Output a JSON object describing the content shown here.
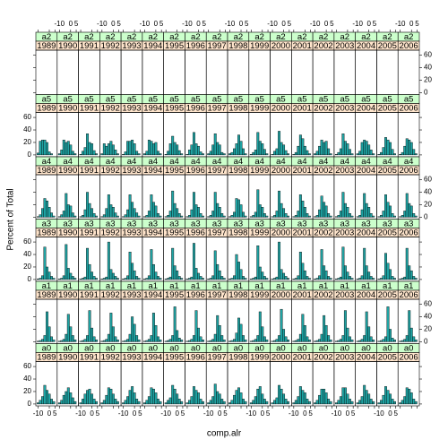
{
  "chart_data": {
    "type": "histogram",
    "xlabel": "comp.alr",
    "ylabel": "Percent of Total",
    "bins": [
      -11,
      -9,
      -7,
      -5,
      -3,
      -1,
      1,
      3,
      5
    ],
    "xlim": [
      -12,
      7
    ],
    "xticks": [
      -10,
      0,
      5
    ],
    "ylim": [
      -3,
      68
    ],
    "yticks": [
      0,
      20,
      40,
      60
    ],
    "color": "#1fa3a3",
    "strip_colors": [
      "#ccffcc",
      "#ffe5cc"
    ],
    "years": [
      "1989",
      "1990",
      "1991",
      "1992",
      "1993",
      "1994",
      "1995",
      "1996",
      "1997",
      "1998",
      "1999",
      "2000",
      "2001",
      "2002",
      "2003",
      "2004",
      "2005",
      "2006"
    ],
    "rows": [
      {
        "group": "a2",
        "panels": [
          [
            0,
            0,
            0,
            0,
            0,
            0,
            0,
            0
          ],
          [
            0,
            0,
            0,
            0,
            0,
            0,
            0,
            0
          ],
          [
            0,
            0,
            0,
            0,
            0,
            0,
            0,
            0
          ],
          [
            0,
            0,
            0,
            0,
            0,
            0,
            0,
            0
          ],
          [
            0,
            0,
            0,
            0,
            0,
            0,
            0,
            0
          ],
          [
            0,
            0,
            0,
            0,
            0,
            0,
            0,
            0
          ],
          [
            0,
            0,
            0,
            0,
            0,
            0,
            0,
            0
          ],
          [
            0,
            0,
            0,
            0,
            0,
            0,
            0,
            0
          ],
          [
            0,
            0,
            0,
            0,
            0,
            0,
            0,
            0
          ],
          [
            0,
            0,
            0,
            0,
            0,
            0,
            0,
            0
          ],
          [
            0,
            0,
            0,
            0,
            0,
            0,
            0,
            0
          ],
          [
            0,
            0,
            0,
            0,
            0,
            0,
            0,
            0
          ],
          [
            0,
            0,
            0,
            0,
            0,
            0,
            0,
            0
          ],
          [
            0,
            0,
            0,
            0,
            0,
            0,
            0,
            0
          ],
          [
            0,
            0,
            0,
            0,
            0,
            0,
            0,
            0
          ],
          [
            0,
            0,
            0,
            0,
            0,
            0,
            0,
            0
          ],
          [
            0,
            0,
            0,
            0,
            0,
            0,
            0,
            0
          ],
          [
            0,
            0,
            0,
            0,
            0,
            0,
            0,
            0
          ]
        ]
      },
      {
        "group": "a5",
        "panels": [
          [
            3,
            22,
            24,
            24,
            20,
            5,
            2,
            0
          ],
          [
            2,
            8,
            24,
            20,
            22,
            16,
            6,
            2
          ],
          [
            1,
            6,
            12,
            34,
            20,
            18,
            7,
            2
          ],
          [
            2,
            18,
            14,
            18,
            22,
            16,
            8,
            2
          ],
          [
            1,
            5,
            22,
            22,
            24,
            18,
            6,
            2
          ],
          [
            2,
            6,
            24,
            22,
            18,
            20,
            6,
            2
          ],
          [
            1,
            6,
            18,
            30,
            20,
            16,
            7,
            2
          ],
          [
            1,
            8,
            16,
            36,
            18,
            14,
            5,
            2
          ],
          [
            2,
            6,
            16,
            34,
            20,
            16,
            4,
            2
          ],
          [
            2,
            4,
            10,
            18,
            32,
            22,
            10,
            2
          ],
          [
            1,
            4,
            8,
            36,
            22,
            18,
            9,
            2
          ],
          [
            1,
            6,
            10,
            38,
            20,
            16,
            7,
            2
          ],
          [
            1,
            4,
            14,
            32,
            26,
            14,
            7,
            2
          ],
          [
            2,
            6,
            14,
            24,
            20,
            22,
            10,
            2
          ],
          [
            1,
            4,
            10,
            34,
            22,
            18,
            9,
            2
          ],
          [
            2,
            6,
            20,
            24,
            22,
            16,
            8,
            2
          ],
          [
            1,
            4,
            12,
            28,
            24,
            20,
            9,
            2
          ],
          [
            1,
            4,
            14,
            26,
            24,
            20,
            9,
            2
          ]
        ]
      },
      {
        "group": "a4",
        "panels": [
          [
            1,
            4,
            14,
            30,
            26,
            16,
            7,
            2
          ],
          [
            1,
            4,
            10,
            38,
            20,
            18,
            7,
            2
          ],
          [
            1,
            3,
            12,
            40,
            22,
            14,
            6,
            2
          ],
          [
            1,
            4,
            14,
            36,
            20,
            16,
            7,
            2
          ],
          [
            1,
            4,
            12,
            36,
            24,
            14,
            7,
            2
          ],
          [
            1,
            3,
            10,
            36,
            24,
            18,
            6,
            2
          ],
          [
            1,
            3,
            10,
            42,
            22,
            14,
            6,
            2
          ],
          [
            1,
            3,
            12,
            40,
            20,
            16,
            6,
            2
          ],
          [
            1,
            3,
            10,
            40,
            22,
            16,
            6,
            2
          ],
          [
            1,
            3,
            8,
            30,
            28,
            20,
            8,
            2
          ],
          [
            1,
            3,
            8,
            44,
            20,
            16,
            6,
            2
          ],
          [
            1,
            3,
            10,
            42,
            22,
            14,
            6,
            2
          ],
          [
            1,
            3,
            10,
            36,
            26,
            16,
            6,
            2
          ],
          [
            1,
            3,
            12,
            34,
            24,
            18,
            6,
            2
          ],
          [
            1,
            3,
            10,
            40,
            22,
            16,
            6,
            2
          ],
          [
            1,
            3,
            12,
            38,
            22,
            16,
            6,
            2
          ],
          [
            1,
            3,
            10,
            36,
            24,
            18,
            6,
            2
          ],
          [
            1,
            3,
            10,
            38,
            22,
            18,
            6,
            2
          ]
        ]
      },
      {
        "group": "a3",
        "panels": [
          [
            1,
            2,
            6,
            52,
            20,
            12,
            5,
            2
          ],
          [
            1,
            2,
            6,
            56,
            18,
            10,
            5,
            2
          ],
          [
            1,
            2,
            4,
            50,
            24,
            12,
            5,
            2
          ],
          [
            1,
            2,
            4,
            60,
            16,
            10,
            5,
            2
          ],
          [
            1,
            2,
            6,
            44,
            26,
            14,
            5,
            2
          ],
          [
            1,
            2,
            6,
            48,
            24,
            12,
            5,
            2
          ],
          [
            1,
            2,
            4,
            50,
            22,
            14,
            5,
            2
          ],
          [
            1,
            2,
            4,
            58,
            18,
            10,
            5,
            2
          ],
          [
            1,
            2,
            6,
            46,
            24,
            14,
            5,
            2
          ],
          [
            1,
            2,
            6,
            40,
            28,
            16,
            5,
            2
          ],
          [
            1,
            2,
            4,
            54,
            20,
            12,
            5,
            2
          ],
          [
            1,
            2,
            4,
            60,
            16,
            10,
            5,
            2
          ],
          [
            1,
            2,
            6,
            44,
            26,
            14,
            5,
            2
          ],
          [
            1,
            2,
            6,
            48,
            22,
            14,
            5,
            2
          ],
          [
            1,
            2,
            4,
            52,
            22,
            12,
            5,
            2
          ],
          [
            1,
            2,
            6,
            50,
            22,
            12,
            5,
            2
          ],
          [
            1,
            2,
            6,
            42,
            26,
            16,
            5,
            2
          ],
          [
            1,
            2,
            4,
            50,
            22,
            14,
            5,
            2
          ]
        ]
      },
      {
        "group": "a1",
        "panels": [
          [
            1,
            2,
            4,
            10,
            48,
            24,
            8,
            3
          ],
          [
            1,
            2,
            4,
            12,
            44,
            24,
            10,
            3
          ],
          [
            1,
            2,
            4,
            10,
            50,
            22,
            8,
            3
          ],
          [
            1,
            2,
            4,
            12,
            46,
            24,
            8,
            3
          ],
          [
            1,
            2,
            4,
            12,
            40,
            28,
            10,
            3
          ],
          [
            1,
            2,
            4,
            10,
            46,
            26,
            8,
            3
          ],
          [
            1,
            2,
            4,
            10,
            56,
            18,
            6,
            3
          ],
          [
            1,
            2,
            4,
            10,
            50,
            22,
            8,
            3
          ],
          [
            1,
            2,
            4,
            12,
            42,
            26,
            10,
            3
          ],
          [
            1,
            2,
            4,
            14,
            38,
            28,
            10,
            3
          ],
          [
            1,
            2,
            4,
            10,
            48,
            24,
            8,
            3
          ],
          [
            1,
            2,
            4,
            10,
            52,
            20,
            8,
            3
          ],
          [
            1,
            2,
            4,
            12,
            44,
            26,
            8,
            3
          ],
          [
            1,
            2,
            4,
            12,
            42,
            26,
            10,
            3
          ],
          [
            1,
            2,
            4,
            10,
            50,
            22,
            8,
            3
          ],
          [
            1,
            2,
            4,
            10,
            48,
            24,
            8,
            3
          ],
          [
            1,
            2,
            4,
            8,
            56,
            20,
            6,
            3
          ],
          [
            1,
            2,
            4,
            10,
            50,
            22,
            8,
            3
          ]
        ]
      },
      {
        "group": "a0",
        "panels": [
          [
            2,
            6,
            12,
            30,
            22,
            16,
            8,
            4
          ],
          [
            2,
            6,
            14,
            20,
            26,
            18,
            10,
            4
          ],
          [
            2,
            8,
            16,
            22,
            24,
            16,
            8,
            4
          ],
          [
            2,
            6,
            14,
            26,
            24,
            16,
            8,
            4
          ],
          [
            2,
            6,
            12,
            22,
            28,
            18,
            8,
            4
          ],
          [
            2,
            6,
            12,
            26,
            24,
            18,
            8,
            4
          ],
          [
            2,
            6,
            10,
            30,
            24,
            16,
            8,
            4
          ],
          [
            2,
            6,
            12,
            28,
            22,
            18,
            8,
            4
          ],
          [
            2,
            6,
            12,
            32,
            20,
            16,
            8,
            4
          ],
          [
            2,
            6,
            14,
            22,
            26,
            18,
            8,
            4
          ],
          [
            2,
            6,
            12,
            24,
            28,
            16,
            8,
            4
          ],
          [
            2,
            6,
            10,
            30,
            24,
            16,
            8,
            4
          ],
          [
            2,
            6,
            12,
            28,
            22,
            18,
            8,
            4
          ],
          [
            2,
            6,
            14,
            24,
            24,
            18,
            8,
            4
          ],
          [
            2,
            6,
            12,
            26,
            26,
            16,
            8,
            4
          ],
          [
            2,
            6,
            12,
            30,
            22,
            16,
            8,
            4
          ],
          [
            2,
            6,
            14,
            28,
            22,
            16,
            8,
            4
          ],
          [
            2,
            6,
            12,
            26,
            24,
            18,
            8,
            4
          ]
        ]
      }
    ]
  }
}
